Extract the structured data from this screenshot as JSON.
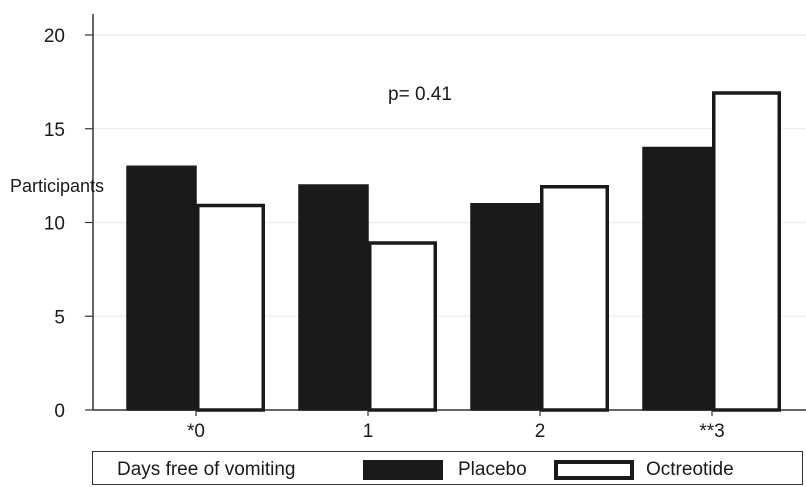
{
  "chart_data": {
    "type": "bar",
    "categories": [
      "*0",
      "1",
      "2",
      "**3"
    ],
    "series": [
      {
        "name": "Placebo",
        "values": [
          13,
          12,
          11,
          14
        ],
        "color": "#1a1a1a"
      },
      {
        "name": "Octreotide",
        "values": [
          11,
          9,
          12,
          17
        ],
        "color": "#ffffff"
      }
    ],
    "ylabel": "Participants",
    "ylim": [
      0,
      20
    ],
    "yticks": [
      0,
      5,
      10,
      15,
      20
    ],
    "annotation": "p= 0.41",
    "grid": true,
    "legend": {
      "placement": "bottom",
      "title": "Days free of vomiting",
      "entries": [
        "Placebo",
        "Octreotide"
      ]
    }
  }
}
